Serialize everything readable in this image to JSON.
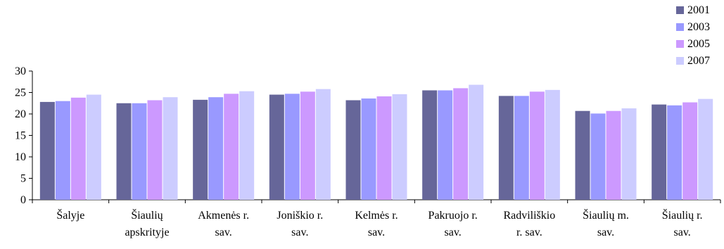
{
  "chart_data": {
    "type": "bar",
    "title": "",
    "xlabel": "",
    "ylabel": "",
    "ylim": [
      0,
      30
    ],
    "yticks": [
      0,
      5,
      10,
      15,
      20,
      25,
      30
    ],
    "grid": false,
    "legend_position": "top-right",
    "categories": [
      [
        "Šalyje"
      ],
      [
        "Šiaulių",
        "apskrityje"
      ],
      [
        "Akmenės r.",
        "sav."
      ],
      [
        "Joniškio r.",
        "sav."
      ],
      [
        "Kelmės r.",
        "sav."
      ],
      [
        "Pakruojo r.",
        "sav."
      ],
      [
        "Radviliškio",
        "r. sav."
      ],
      [
        "Šiaulių m.",
        "sav."
      ],
      [
        "Šiaulių r.",
        "sav."
      ]
    ],
    "series": [
      {
        "name": "2001",
        "color": "#666699",
        "values": [
          22.8,
          22.5,
          23.3,
          24.5,
          23.2,
          25.5,
          24.2,
          20.7,
          22.2
        ]
      },
      {
        "name": "2003",
        "color": "#9999ff",
        "values": [
          23.0,
          22.5,
          23.9,
          24.7,
          23.6,
          25.5,
          24.2,
          20.1,
          22.0
        ]
      },
      {
        "name": "2005",
        "color": "#cc99ff",
        "values": [
          23.8,
          23.2,
          24.7,
          25.2,
          24.1,
          26.0,
          25.2,
          20.7,
          22.7
        ]
      },
      {
        "name": "2007",
        "color": "#ccccff",
        "values": [
          24.5,
          23.9,
          25.3,
          25.8,
          24.6,
          26.8,
          25.6,
          21.3,
          23.5
        ]
      }
    ]
  }
}
